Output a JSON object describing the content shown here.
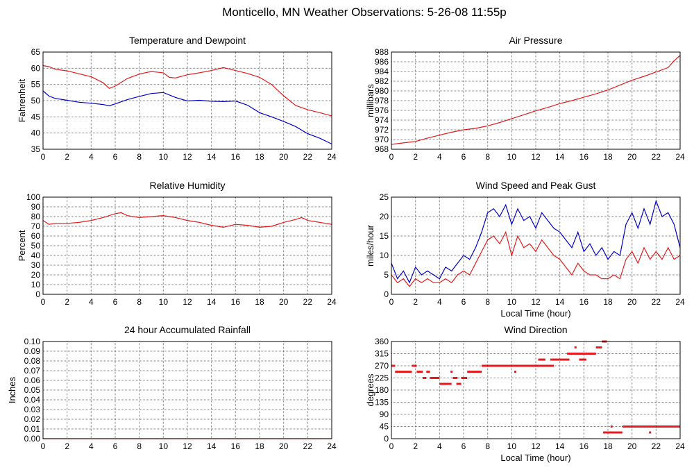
{
  "page_title": "Monticello, MN Weather Observations: 5-26-08 11:55p",
  "colors": {
    "red": "#e41a1c",
    "blue": "#0000cc",
    "grid": "#808080"
  },
  "chart_data": [
    {
      "id": "temp",
      "type": "line",
      "title": "Temperature and Dewpoint",
      "xlabel": "",
      "ylabel": "Fahrenheit",
      "xlim": [
        0,
        24
      ],
      "ylim": [
        35,
        65
      ],
      "xticks": [
        0,
        2,
        4,
        6,
        8,
        10,
        12,
        14,
        16,
        18,
        20,
        22,
        24
      ],
      "yticks": [
        35,
        40,
        45,
        50,
        55,
        60,
        65
      ],
      "series": [
        {
          "name": "Temperature",
          "color": "#e41a1c",
          "x": [
            0,
            0.5,
            1,
            2,
            3,
            4,
            5,
            5.5,
            6,
            7,
            8,
            9,
            10,
            10.5,
            11,
            12,
            13,
            14,
            15,
            16,
            17,
            18,
            19,
            20,
            21,
            22,
            23,
            24
          ],
          "y": [
            60.8,
            60.5,
            59.7,
            59.2,
            58.3,
            57.4,
            55.5,
            53.8,
            54.5,
            56.8,
            58.2,
            59.0,
            58.6,
            57.2,
            57.0,
            58.0,
            58.6,
            59.3,
            60.2,
            59.3,
            58.4,
            57.2,
            55.0,
            51.5,
            48.5,
            47.2,
            46.3,
            45.3
          ]
        },
        {
          "name": "Dewpoint",
          "color": "#0000cc",
          "x": [
            0,
            0.5,
            1,
            2,
            3,
            4,
            5,
            5.5,
            6,
            7,
            8,
            9,
            10,
            11,
            12,
            13,
            14,
            15,
            16,
            17,
            18,
            19,
            20,
            21,
            22,
            23,
            24
          ],
          "y": [
            53.0,
            51.4,
            50.7,
            50.1,
            49.5,
            49.2,
            48.8,
            48.4,
            49.0,
            50.3,
            51.3,
            52.2,
            52.5,
            51.0,
            49.9,
            50.1,
            49.8,
            49.7,
            49.9,
            48.6,
            46.3,
            45.0,
            43.6,
            42.0,
            39.8,
            38.4,
            36.6
          ]
        }
      ]
    },
    {
      "id": "pressure",
      "type": "line",
      "title": "Air Pressure",
      "xlabel": "",
      "ylabel": "millibars",
      "xlim": [
        0,
        24
      ],
      "ylim": [
        968,
        988
      ],
      "xticks": [
        0,
        2,
        4,
        6,
        8,
        10,
        12,
        14,
        16,
        18,
        20,
        22,
        24
      ],
      "yticks": [
        968,
        970,
        972,
        974,
        976,
        978,
        980,
        982,
        984,
        986,
        988
      ],
      "series": [
        {
          "name": "Air Pressure",
          "color": "#e41a1c",
          "x": [
            0,
            1,
            2,
            3,
            4,
            5,
            6,
            7,
            8,
            9,
            10,
            11,
            12,
            13,
            14,
            15,
            16,
            17,
            18,
            19,
            20,
            21,
            22,
            23,
            23.5,
            24
          ],
          "y": [
            969.0,
            969.3,
            969.6,
            970.3,
            970.9,
            971.5,
            972.0,
            972.3,
            972.8,
            973.5,
            974.3,
            975.1,
            975.9,
            976.6,
            977.4,
            978.0,
            978.7,
            979.4,
            980.2,
            981.2,
            982.2,
            983.0,
            983.9,
            984.8,
            986.2,
            987.3
          ]
        }
      ]
    },
    {
      "id": "humidity",
      "type": "line",
      "title": "Relative Humidity",
      "xlabel": "",
      "ylabel": "Percent",
      "xlim": [
        0,
        24
      ],
      "ylim": [
        0,
        100
      ],
      "xticks": [
        0,
        2,
        4,
        6,
        8,
        10,
        12,
        14,
        16,
        18,
        20,
        22,
        24
      ],
      "yticks": [
        0,
        10,
        20,
        30,
        40,
        50,
        60,
        70,
        80,
        90,
        100
      ],
      "series": [
        {
          "name": "Relative Humidity",
          "color": "#e41a1c",
          "x": [
            0,
            0.5,
            1,
            2,
            3,
            4,
            5,
            6,
            6.5,
            7,
            8,
            9,
            10,
            11,
            12,
            13,
            14,
            15,
            16,
            17,
            18,
            19,
            20,
            21,
            21.5,
            22,
            23,
            24
          ],
          "y": [
            76,
            72,
            73,
            73,
            74,
            76,
            79,
            83,
            84,
            81,
            79,
            80,
            81,
            79,
            76,
            74,
            71,
            69,
            72,
            71,
            69,
            70,
            74,
            77,
            79,
            76,
            74,
            72
          ]
        }
      ]
    },
    {
      "id": "wind",
      "type": "line",
      "title": "Wind Speed and Peak Gust",
      "xlabel": "Local Time (hour)",
      "ylabel": "miles/hour",
      "xlim": [
        0,
        24
      ],
      "ylim": [
        0,
        25
      ],
      "xticks": [
        0,
        2,
        4,
        6,
        8,
        10,
        12,
        14,
        16,
        18,
        20,
        22,
        24
      ],
      "yticks": [
        0,
        5,
        10,
        15,
        20,
        25
      ],
      "series": [
        {
          "name": "Peak Gust",
          "color": "#0000cc",
          "x": [
            0,
            0.5,
            1,
            1.5,
            2,
            2.5,
            3,
            3.5,
            4,
            4.5,
            5,
            5.5,
            6,
            6.5,
            7,
            7.5,
            8,
            8.5,
            9,
            9.5,
            10,
            10.5,
            11,
            11.5,
            12,
            12.5,
            13,
            13.5,
            14,
            14.5,
            15,
            15.5,
            16,
            16.5,
            17,
            17.5,
            18,
            18.5,
            19,
            19.5,
            20,
            20.5,
            21,
            21.5,
            22,
            22.5,
            23,
            23.5,
            24
          ],
          "y": [
            8,
            4,
            6,
            3,
            7,
            5,
            6,
            5,
            4,
            7,
            6,
            8,
            10,
            9,
            12,
            16,
            21,
            22,
            20,
            23,
            18,
            22,
            19,
            20,
            17,
            21,
            19,
            17,
            16,
            14,
            12,
            16,
            11,
            13,
            10,
            12,
            9,
            11,
            10,
            18,
            21,
            17,
            22,
            18,
            24,
            20,
            21,
            18,
            12
          ]
        },
        {
          "name": "Wind Speed",
          "color": "#e41a1c",
          "x": [
            0,
            0.5,
            1,
            1.5,
            2,
            2.5,
            3,
            3.5,
            4,
            4.5,
            5,
            5.5,
            6,
            6.5,
            7,
            7.5,
            8,
            8.5,
            9,
            9.5,
            10,
            10.5,
            11,
            11.5,
            12,
            12.5,
            13,
            13.5,
            14,
            14.5,
            15,
            15.5,
            16,
            16.5,
            17,
            17.5,
            18,
            18.5,
            19,
            19.5,
            20,
            20.5,
            21,
            21.5,
            22,
            22.5,
            23,
            23.5,
            24
          ],
          "y": [
            5,
            3,
            4,
            2,
            4,
            3,
            4,
            3,
            3,
            4,
            3,
            5,
            6,
            5,
            8,
            11,
            14,
            15,
            13,
            16,
            10,
            15,
            12,
            13,
            11,
            14,
            12,
            10,
            9,
            7,
            5,
            8,
            6,
            5,
            5,
            4,
            4,
            5,
            4,
            9,
            11,
            8,
            12,
            9,
            11,
            9,
            12,
            9,
            10
          ]
        }
      ]
    },
    {
      "id": "rain",
      "type": "line",
      "title": "24 hour Accumulated Rainfall",
      "xlabel": "",
      "ylabel": "Inches",
      "xlim": [
        0,
        24
      ],
      "ylim": [
        0,
        0.1
      ],
      "xticks": [
        0,
        2,
        4,
        6,
        8,
        10,
        12,
        14,
        16,
        18,
        20,
        22,
        24
      ],
      "yticks": [
        "0.00",
        "0.01",
        "0.02",
        "0.03",
        "0.04",
        "0.05",
        "0.06",
        "0.07",
        "0.08",
        "0.09",
        "0.10"
      ],
      "series": [
        {
          "name": "Rainfall",
          "color": "#e41a1c",
          "x": [
            0,
            24
          ],
          "y": [
            0,
            0
          ]
        }
      ]
    },
    {
      "id": "winddir",
      "type": "scatter",
      "title": "Wind Direction",
      "xlabel": "Local Time (hour)",
      "ylabel": "degrees",
      "xlim": [
        0,
        24
      ],
      "ylim": [
        0,
        360
      ],
      "xticks": [
        0,
        2,
        4,
        6,
        8,
        10,
        12,
        14,
        16,
        18,
        20,
        22,
        24
      ],
      "yticks": [
        0,
        45,
        90,
        135,
        180,
        225,
        270,
        315,
        360
      ],
      "segments": [
        [
          0,
          0.3,
          270
        ],
        [
          0.3,
          1.7,
          248
        ],
        [
          1.7,
          2.1,
          270
        ],
        [
          2.1,
          2.6,
          248
        ],
        [
          2.6,
          2.9,
          225
        ],
        [
          2.9,
          3.2,
          248
        ],
        [
          3.2,
          4.0,
          225
        ],
        [
          4.0,
          5.0,
          203
        ],
        [
          5.1,
          5.5,
          225
        ],
        [
          5.4,
          5.8,
          203
        ],
        [
          5.8,
          6.3,
          225
        ],
        [
          6.3,
          7.5,
          248
        ],
        [
          7.5,
          13.5,
          270
        ],
        [
          12.2,
          12.8,
          293
        ],
        [
          13.2,
          14.0,
          293
        ],
        [
          14.0,
          14.8,
          293
        ],
        [
          14.6,
          15.2,
          315
        ],
        [
          15.2,
          16.0,
          315
        ],
        [
          15.6,
          16.2,
          293
        ],
        [
          16.0,
          17.0,
          315
        ],
        [
          17.0,
          17.5,
          338
        ],
        [
          17.5,
          17.9,
          360
        ],
        [
          17.6,
          18.0,
          23
        ],
        [
          18.0,
          19.2,
          23
        ],
        [
          19.2,
          24.0,
          45
        ]
      ],
      "points": [
        [
          0.1,
          270
        ],
        [
          0.5,
          248
        ],
        [
          4.5,
          203
        ],
        [
          5.0,
          248
        ],
        [
          10.3,
          248
        ],
        [
          15.3,
          338
        ],
        [
          18.3,
          45
        ],
        [
          21.5,
          23
        ]
      ]
    }
  ]
}
